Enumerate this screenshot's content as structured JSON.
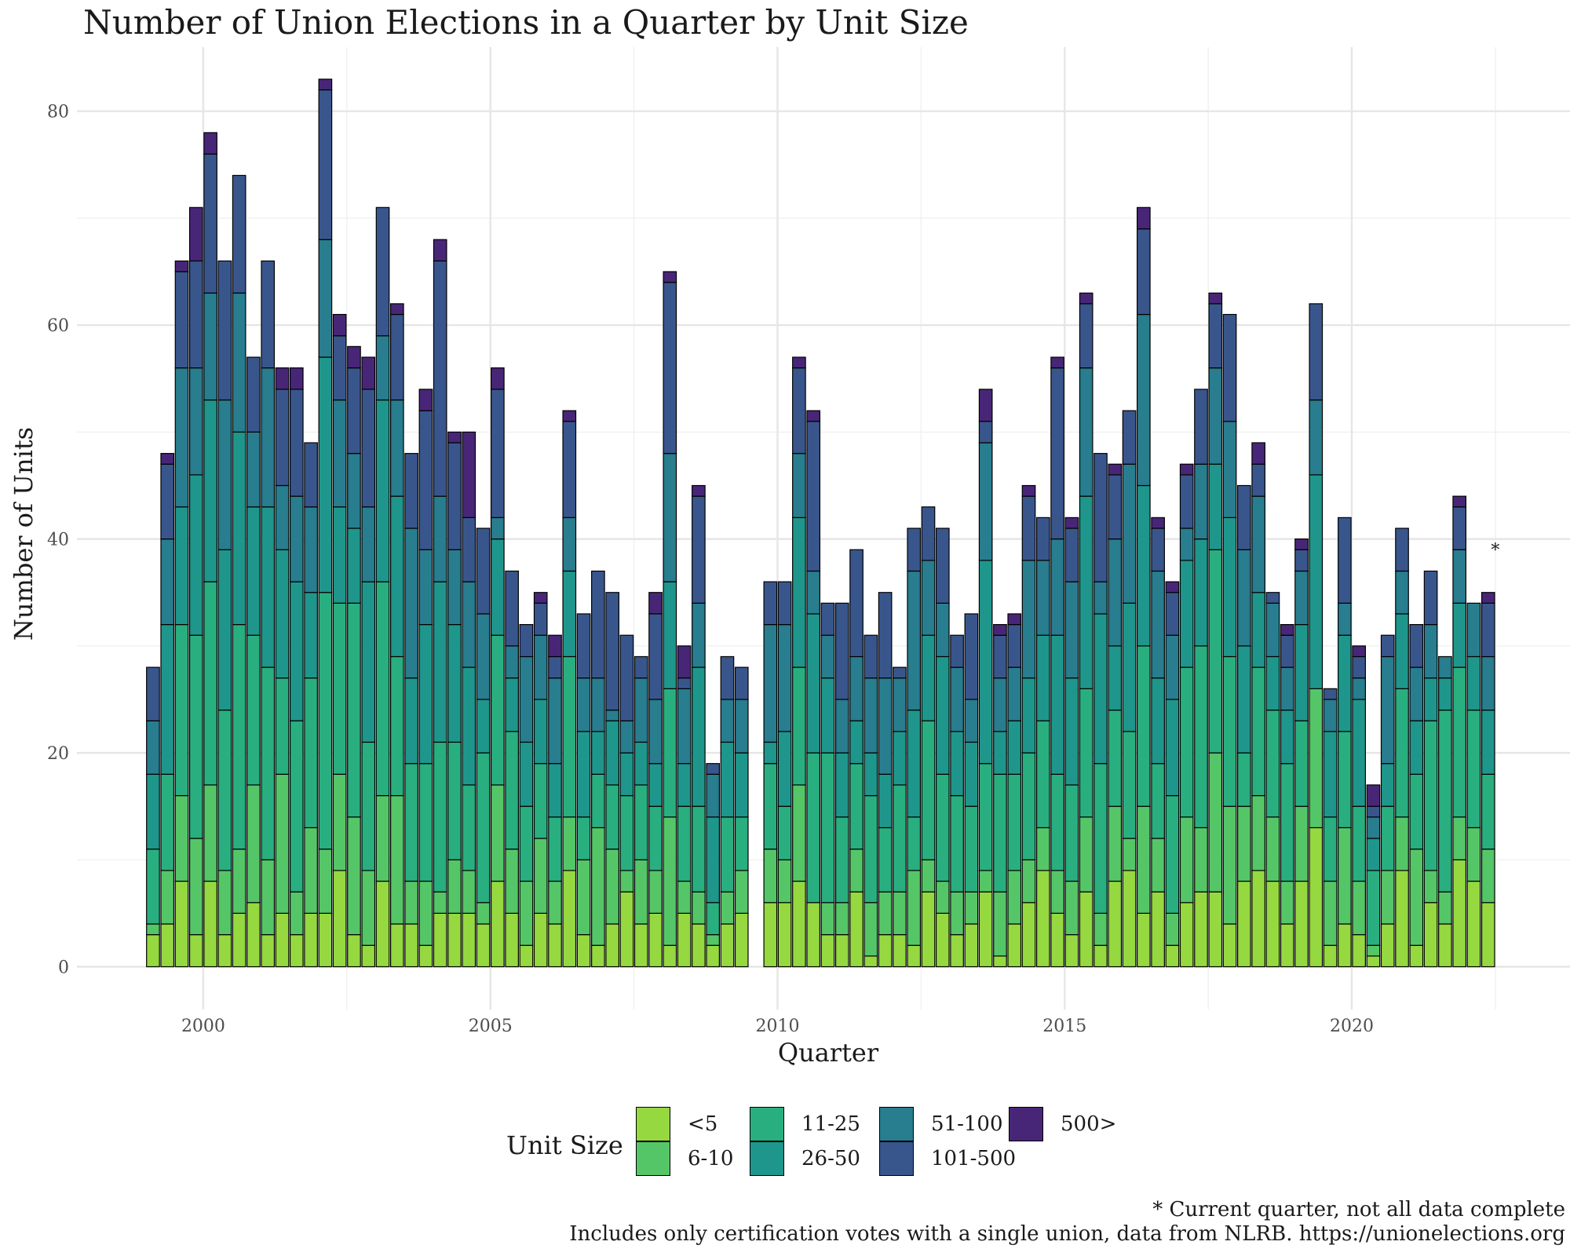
{
  "chart_data": {
    "type": "bar",
    "stacked": true,
    "title": "Number of Union Elections in a Quarter by Unit Size",
    "xlabel": "Quarter",
    "ylabel": "Number of Units",
    "xlim": [
      1997.8,
      2023.8
    ],
    "ylim": [
      -4,
      86
    ],
    "x_ticks": [
      2000,
      2005,
      2010,
      2015,
      2020
    ],
    "y_ticks": [
      0,
      20,
      40,
      60,
      80
    ],
    "grid": true,
    "legend": {
      "title": "Unit Size",
      "position": "bottom"
    },
    "series": [
      {
        "name": "<5",
        "color": "#95D840"
      },
      {
        "name": "6-10",
        "color": "#55C667"
      },
      {
        "name": "11-25",
        "color": "#29AF7F"
      },
      {
        "name": "26-50",
        "color": "#1F968B"
      },
      {
        "name": "51-100",
        "color": "#287D8E"
      },
      {
        "name": "101-500",
        "color": "#39568C"
      },
      {
        "name": "500>",
        "color": "#482677"
      }
    ],
    "quarters": [
      {
        "q": "1999 Q2",
        "x": 1999.125,
        "stack": [
          3,
          4,
          11,
          18,
          23,
          28,
          28
        ]
      },
      {
        "q": "1999 Q3",
        "x": 1999.375,
        "stack": [
          4,
          9,
          18,
          32,
          40,
          47,
          48
        ]
      },
      {
        "q": "1999 Q4",
        "x": 1999.625,
        "stack": [
          8,
          16,
          32,
          43,
          56,
          65,
          66
        ]
      },
      {
        "q": "2000 Q1",
        "x": 1999.875,
        "stack": [
          3,
          12,
          31,
          46,
          56,
          66,
          71
        ]
      },
      {
        "q": "2000 Q2",
        "x": 2000.125,
        "stack": [
          8,
          17,
          36,
          53,
          63,
          76,
          78
        ]
      },
      {
        "q": "2000 Q3",
        "x": 2000.375,
        "stack": [
          3,
          9,
          24,
          39,
          53,
          66,
          66
        ]
      },
      {
        "q": "2000 Q4",
        "x": 2000.625,
        "stack": [
          5,
          11,
          32,
          50,
          63,
          74,
          74
        ]
      },
      {
        "q": "2001 Q1",
        "x": 2000.875,
        "stack": [
          6,
          17,
          31,
          43,
          50,
          57,
          57
        ]
      },
      {
        "q": "2001 Q2",
        "x": 2001.125,
        "stack": [
          3,
          10,
          28,
          43,
          56,
          66,
          66
        ]
      },
      {
        "q": "2001 Q3",
        "x": 2001.375,
        "stack": [
          5,
          18,
          27,
          39,
          45,
          54,
          56
        ]
      },
      {
        "q": "2001 Q4",
        "x": 2001.625,
        "stack": [
          3,
          7,
          23,
          36,
          44,
          54,
          56
        ]
      },
      {
        "q": "2002 Q1",
        "x": 2001.875,
        "stack": [
          5,
          13,
          27,
          35,
          43,
          49,
          49
        ]
      },
      {
        "q": "2002 Q2",
        "x": 2002.125,
        "stack": [
          5,
          11,
          35,
          57,
          68,
          82,
          83
        ]
      },
      {
        "q": "2002 Q3",
        "x": 2002.375,
        "stack": [
          9,
          18,
          34,
          43,
          53,
          59,
          61
        ]
      },
      {
        "q": "2002 Q4",
        "x": 2002.625,
        "stack": [
          3,
          14,
          34,
          41,
          48,
          56,
          58
        ]
      },
      {
        "q": "2003 Q1",
        "x": 2002.875,
        "stack": [
          2,
          9,
          21,
          36,
          43,
          54,
          57
        ]
      },
      {
        "q": "2003 Q2",
        "x": 2003.125,
        "stack": [
          8,
          16,
          36,
          53,
          59,
          71,
          71
        ]
      },
      {
        "q": "2003 Q3",
        "x": 2003.375,
        "stack": [
          4,
          16,
          29,
          44,
          53,
          61,
          62
        ]
      },
      {
        "q": "2003 Q4",
        "x": 2003.625,
        "stack": [
          4,
          8,
          19,
          27,
          41,
          48,
          48
        ]
      },
      {
        "q": "2004 Q1",
        "x": 2003.875,
        "stack": [
          2,
          8,
          19,
          32,
          39,
          52,
          54
        ]
      },
      {
        "q": "2004 Q2",
        "x": 2004.125,
        "stack": [
          5,
          7,
          21,
          36,
          44,
          66,
          68
        ]
      },
      {
        "q": "2004 Q3",
        "x": 2004.375,
        "stack": [
          5,
          10,
          21,
          32,
          39,
          49,
          50
        ]
      },
      {
        "q": "2004 Q4",
        "x": 2004.625,
        "stack": [
          5,
          9,
          17,
          28,
          36,
          42,
          50
        ]
      },
      {
        "q": "2005 Q1",
        "x": 2004.875,
        "stack": [
          4,
          6,
          20,
          25,
          33,
          41,
          41
        ]
      },
      {
        "q": "2005 Q2",
        "x": 2005.125,
        "stack": [
          8,
          17,
          31,
          40,
          42,
          54,
          56
        ]
      },
      {
        "q": "2005 Q3",
        "x": 2005.375,
        "stack": [
          5,
          11,
          22,
          27,
          30,
          37,
          37
        ]
      },
      {
        "q": "2005 Q4",
        "x": 2005.625,
        "stack": [
          2,
          8,
          15,
          21,
          29,
          32,
          32
        ]
      },
      {
        "q": "2006 Q1",
        "x": 2005.875,
        "stack": [
          5,
          12,
          19,
          25,
          31,
          34,
          35
        ]
      },
      {
        "q": "2006 Q2",
        "x": 2006.125,
        "stack": [
          4,
          8,
          14,
          19,
          27,
          29,
          31
        ]
      },
      {
        "q": "2006 Q3",
        "x": 2006.375,
        "stack": [
          9,
          14,
          29,
          37,
          42,
          51,
          52
        ]
      },
      {
        "q": "2006 Q4",
        "x": 2006.625,
        "stack": [
          3,
          10,
          14,
          22,
          27,
          33,
          33
        ]
      },
      {
        "q": "2007 Q1",
        "x": 2006.875,
        "stack": [
          2,
          13,
          18,
          22,
          27,
          37,
          37
        ]
      },
      {
        "q": "2007 Q2",
        "x": 2007.125,
        "stack": [
          4,
          11,
          17,
          23,
          24,
          35,
          35
        ]
      },
      {
        "q": "2007 Q3",
        "x": 2007.375,
        "stack": [
          7,
          9,
          16,
          20,
          23,
          31,
          31
        ]
      },
      {
        "q": "2007 Q4",
        "x": 2007.625,
        "stack": [
          4,
          10,
          17,
          21,
          27,
          29,
          29
        ]
      },
      {
        "q": "2008 Q1",
        "x": 2007.875,
        "stack": [
          5,
          9,
          15,
          19,
          25,
          33,
          35
        ]
      },
      {
        "q": "2008 Q2",
        "x": 2008.125,
        "stack": [
          2,
          14,
          26,
          36,
          48,
          64,
          65
        ]
      },
      {
        "q": "2008 Q3",
        "x": 2008.375,
        "stack": [
          5,
          8,
          15,
          19,
          26,
          27,
          30
        ]
      },
      {
        "q": "2008 Q4",
        "x": 2008.625,
        "stack": [
          4,
          7,
          15,
          28,
          34,
          44,
          45
        ]
      },
      {
        "q": "2009 Q1",
        "x": 2008.875,
        "stack": [
          2,
          3,
          6,
          14,
          18,
          19,
          19
        ]
      },
      {
        "q": "2009 Q2",
        "x": 2009.125,
        "stack": [
          4,
          7,
          14,
          21,
          25,
          29,
          29
        ]
      },
      {
        "q": "2009 Q3",
        "x": 2009.375,
        "stack": [
          5,
          9,
          14,
          20,
          25,
          28,
          28
        ]
      },
      {
        "q": "2009 Q4",
        "x": 2009.875,
        "stack": [
          6,
          11,
          19,
          21,
          32,
          36,
          36
        ]
      },
      {
        "q": "2010 Q1",
        "x": 2010.125,
        "stack": [
          6,
          10,
          15,
          22,
          32,
          36,
          36
        ]
      },
      {
        "q": "2010 Q2",
        "x": 2010.375,
        "stack": [
          8,
          17,
          28,
          42,
          48,
          56,
          57
        ]
      },
      {
        "q": "2010 Q3",
        "x": 2010.625,
        "stack": [
          6,
          6,
          20,
          33,
          37,
          51,
          52
        ]
      },
      {
        "q": "2010 Q4",
        "x": 2010.875,
        "stack": [
          3,
          6,
          20,
          27,
          31,
          34,
          34
        ]
      },
      {
        "q": "2011 Q1",
        "x": 2011.125,
        "stack": [
          3,
          6,
          14,
          20,
          25,
          34,
          34
        ]
      },
      {
        "q": "2011 Q2",
        "x": 2011.375,
        "stack": [
          7,
          11,
          19,
          23,
          29,
          39,
          39
        ]
      },
      {
        "q": "2011 Q3",
        "x": 2011.625,
        "stack": [
          1,
          6,
          16,
          20,
          27,
          31,
          31
        ]
      },
      {
        "q": "2011 Q4",
        "x": 2011.875,
        "stack": [
          3,
          7,
          13,
          18,
          27,
          35,
          35
        ]
      },
      {
        "q": "2012 Q1",
        "x": 2012.125,
        "stack": [
          3,
          7,
          17,
          22,
          27,
          28,
          28
        ]
      },
      {
        "q": "2012 Q2",
        "x": 2012.375,
        "stack": [
          2,
          9,
          14,
          24,
          37,
          41,
          41
        ]
      },
      {
        "q": "2012 Q3",
        "x": 2012.625,
        "stack": [
          7,
          10,
          23,
          31,
          38,
          43,
          43
        ]
      },
      {
        "q": "2012 Q4",
        "x": 2012.875,
        "stack": [
          5,
          8,
          18,
          29,
          34,
          41,
          41
        ]
      },
      {
        "q": "2013 Q1",
        "x": 2013.125,
        "stack": [
          3,
          7,
          16,
          22,
          28,
          31,
          31
        ]
      },
      {
        "q": "2013 Q2",
        "x": 2013.375,
        "stack": [
          4,
          7,
          15,
          21,
          25,
          33,
          33
        ]
      },
      {
        "q": "2013 Q3",
        "x": 2013.625,
        "stack": [
          7,
          9,
          19,
          38,
          49,
          51,
          54
        ]
      },
      {
        "q": "2013 Q4",
        "x": 2013.875,
        "stack": [
          1,
          7,
          18,
          22,
          27,
          31,
          32
        ]
      },
      {
        "q": "2014 Q1",
        "x": 2014.125,
        "stack": [
          4,
          9,
          18,
          23,
          28,
          32,
          33
        ]
      },
      {
        "q": "2014 Q2",
        "x": 2014.375,
        "stack": [
          6,
          10,
          20,
          27,
          38,
          44,
          45
        ]
      },
      {
        "q": "2014 Q3",
        "x": 2014.625,
        "stack": [
          9,
          13,
          23,
          31,
          38,
          42,
          42
        ]
      },
      {
        "q": "2014 Q4",
        "x": 2014.875,
        "stack": [
          5,
          9,
          18,
          31,
          40,
          56,
          57
        ]
      },
      {
        "q": "2015 Q1",
        "x": 2015.125,
        "stack": [
          3,
          8,
          17,
          27,
          36,
          41,
          42
        ]
      },
      {
        "q": "2015 Q2",
        "x": 2015.375,
        "stack": [
          7,
          14,
          26,
          44,
          56,
          62,
          63
        ]
      },
      {
        "q": "2015 Q3",
        "x": 2015.625,
        "stack": [
          2,
          5,
          19,
          33,
          36,
          48,
          48
        ]
      },
      {
        "q": "2015 Q4",
        "x": 2015.875,
        "stack": [
          8,
          15,
          24,
          30,
          40,
          46,
          47
        ]
      },
      {
        "q": "2016 Q1",
        "x": 2016.125,
        "stack": [
          9,
          12,
          22,
          34,
          47,
          52,
          52
        ]
      },
      {
        "q": "2016 Q2",
        "x": 2016.375,
        "stack": [
          5,
          15,
          30,
          45,
          61,
          69,
          71
        ]
      },
      {
        "q": "2016 Q3",
        "x": 2016.625,
        "stack": [
          7,
          12,
          19,
          27,
          37,
          41,
          42
        ]
      },
      {
        "q": "2016 Q4",
        "x": 2016.875,
        "stack": [
          2,
          5,
          16,
          25,
          31,
          35,
          36
        ]
      },
      {
        "q": "2017 Q1",
        "x": 2017.125,
        "stack": [
          6,
          14,
          28,
          38,
          41,
          46,
          47
        ]
      },
      {
        "q": "2017 Q2",
        "x": 2017.375,
        "stack": [
          7,
          13,
          30,
          40,
          47,
          54,
          54
        ]
      },
      {
        "q": "2017 Q3",
        "x": 2017.625,
        "stack": [
          7,
          20,
          39,
          47,
          56,
          62,
          63
        ]
      },
      {
        "q": "2017 Q4",
        "x": 2017.875,
        "stack": [
          4,
          15,
          29,
          42,
          51,
          61,
          61
        ]
      },
      {
        "q": "2018 Q1",
        "x": 2018.125,
        "stack": [
          8,
          15,
          20,
          30,
          39,
          45,
          45
        ]
      },
      {
        "q": "2018 Q2",
        "x": 2018.375,
        "stack": [
          9,
          16,
          28,
          35,
          44,
          47,
          49
        ]
      },
      {
        "q": "2018 Q3",
        "x": 2018.625,
        "stack": [
          8,
          14,
          24,
          29,
          34,
          35,
          35
        ]
      },
      {
        "q": "2018 Q4",
        "x": 2018.875,
        "stack": [
          4,
          8,
          19,
          24,
          28,
          31,
          32
        ]
      },
      {
        "q": "2019 Q1",
        "x": 2019.125,
        "stack": [
          8,
          15,
          23,
          32,
          37,
          39,
          40
        ]
      },
      {
        "q": "2019 Q2",
        "x": 2019.375,
        "stack": [
          13,
          26,
          26,
          46,
          53,
          62,
          62
        ]
      },
      {
        "q": "2019 Q3",
        "x": 2019.625,
        "stack": [
          2,
          8,
          14,
          22,
          25,
          26,
          26
        ]
      },
      {
        "q": "2019 Q4",
        "x": 2019.875,
        "stack": [
          4,
          13,
          22,
          31,
          34,
          42,
          42
        ]
      },
      {
        "q": "2020 Q1",
        "x": 2020.125,
        "stack": [
          3,
          8,
          15,
          25,
          27,
          29,
          30
        ]
      },
      {
        "q": "2020 Q2",
        "x": 2020.375,
        "stack": [
          1,
          2,
          9,
          12,
          14,
          15,
          17
        ]
      },
      {
        "q": "2020 Q3",
        "x": 2020.625,
        "stack": [
          4,
          9,
          15,
          19,
          29,
          31,
          31
        ]
      },
      {
        "q": "2020 Q4",
        "x": 2020.875,
        "stack": [
          9,
          14,
          26,
          33,
          37,
          41,
          41
        ]
      },
      {
        "q": "2021 Q1",
        "x": 2021.125,
        "stack": [
          2,
          11,
          18,
          23,
          28,
          32,
          32
        ]
      },
      {
        "q": "2021 Q2",
        "x": 2021.375,
        "stack": [
          6,
          9,
          23,
          27,
          32,
          37,
          37
        ]
      },
      {
        "q": "2021 Q3",
        "x": 2021.625,
        "stack": [
          4,
          7,
          24,
          27,
          29,
          29,
          29
        ]
      },
      {
        "q": "2021 Q4",
        "x": 2021.875,
        "stack": [
          10,
          14,
          28,
          34,
          39,
          43,
          44
        ]
      },
      {
        "q": "2022 Q1",
        "x": 2022.125,
        "stack": [
          8,
          13,
          24,
          29,
          34,
          34,
          34
        ]
      },
      {
        "q": "2022 Q2",
        "x": 2022.375,
        "stack": [
          6,
          11,
          18,
          24,
          29,
          34,
          35
        ]
      }
    ],
    "annotation": {
      "text": "*",
      "x": 2022.5,
      "y": 39
    }
  },
  "footnotes": {
    "current": "* Current quarter, not all data complete",
    "source": "Includes only certification votes with a single union, data from NLRB. https://unionelections.org"
  }
}
